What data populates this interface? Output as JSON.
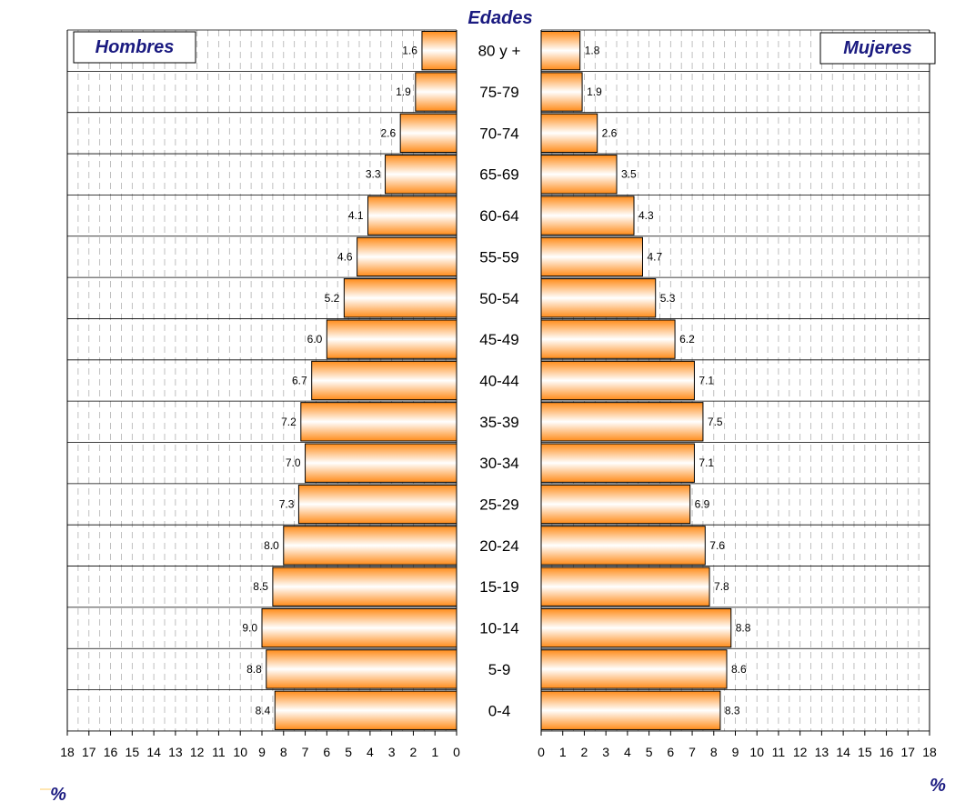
{
  "chart_data": {
    "type": "bar",
    "title": "Edades",
    "left_legend": "Hombres",
    "right_legend": "Mujeres",
    "unit_left": "%",
    "unit_right": "%",
    "categories": [
      "80 y +",
      "75-79",
      "70-74",
      "65-69",
      "60-64",
      "55-59",
      "50-54",
      "45-49",
      "40-44",
      "35-39",
      "30-34",
      "25-29",
      "20-24",
      "15-19",
      "10-14",
      "5-9",
      "0-4"
    ],
    "series": [
      {
        "name": "Hombres",
        "values": [
          1.6,
          1.9,
          2.6,
          3.3,
          4.1,
          4.6,
          5.2,
          6.0,
          6.7,
          7.2,
          7.0,
          7.3,
          8.0,
          8.5,
          9.0,
          8.8,
          8.4
        ],
        "labels": [
          "1.6",
          "1.9",
          "2.6",
          "3.3",
          "4.1",
          "4.6",
          "5.2",
          "6.0",
          "6.7",
          "7.2",
          "7.0",
          "7.3",
          "8.0",
          "8.5",
          "9.0",
          "8.8",
          "8.4"
        ]
      },
      {
        "name": "Mujeres",
        "values": [
          1.8,
          1.9,
          2.6,
          3.5,
          4.3,
          4.7,
          5.3,
          6.2,
          7.1,
          7.5,
          7.1,
          6.9,
          7.6,
          7.8,
          8.8,
          8.6,
          8.3
        ],
        "labels": [
          "1.8",
          "1.9",
          "2.6",
          "3.5",
          "4.3",
          "4.7",
          "5.3",
          "6.2",
          "7.1",
          "7.5",
          "7.1",
          "6.9",
          "7.6",
          "7.8",
          "8.8",
          "8.6",
          "8.3"
        ]
      }
    ],
    "xlim": [
      0,
      18
    ],
    "ticks_left": [
      "18",
      "17",
      "16",
      "15",
      "14",
      "13",
      "12",
      "11",
      "10",
      "9",
      "8",
      "7",
      "6",
      "5",
      "4",
      "3",
      "2",
      "1",
      "0"
    ],
    "ticks_right": [
      "0",
      "1",
      "2",
      "3",
      "4",
      "5",
      "6",
      "7",
      "8",
      "9",
      "10",
      "11",
      "12",
      "13",
      "14",
      "15",
      "16",
      "17",
      "18"
    ],
    "grid": true,
    "colors": {
      "bar_edge": "#ff8c1a",
      "bar_center": "#ffffff",
      "text_accent": "#1a1a80"
    }
  }
}
